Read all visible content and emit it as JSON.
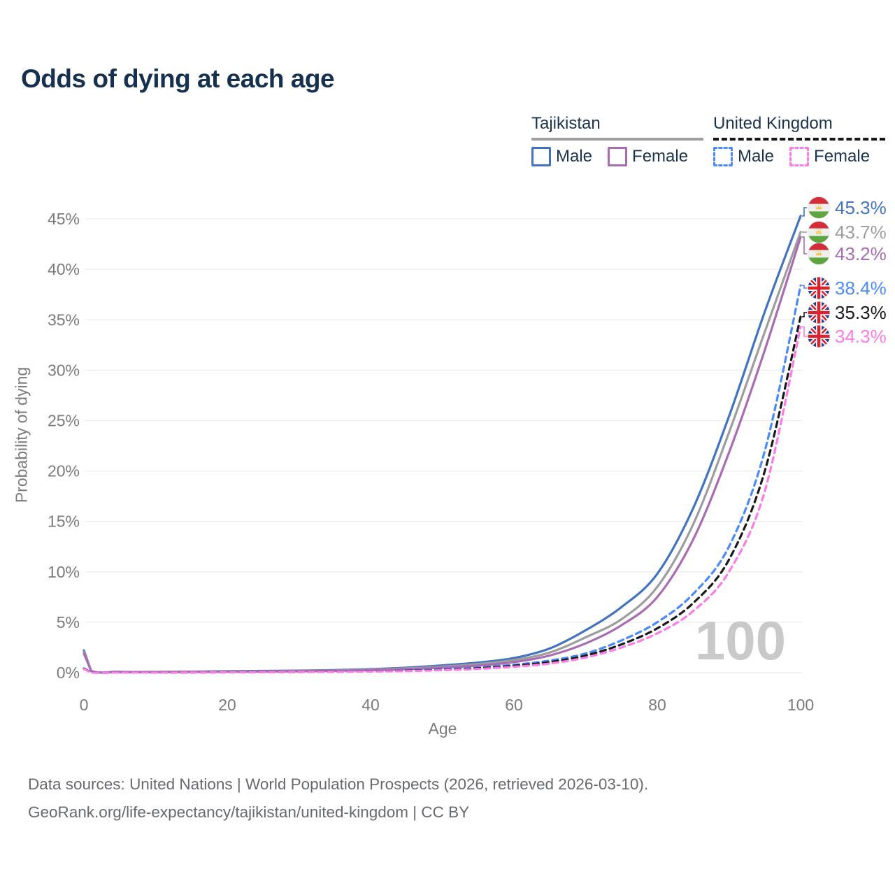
{
  "title": "Odds of dying at each age",
  "legend": {
    "tajikistan": {
      "title": "Tajikistan",
      "male": "Male",
      "female": "Female"
    },
    "united_kingdom": {
      "title": "United Kingdom",
      "male": "Male",
      "female": "Female"
    }
  },
  "colors": {
    "tj_male": "#4273bf",
    "tj_both": "#9d9d9d",
    "tj_female": "#a96cb3",
    "uk_male": "#4b8af8",
    "uk_both": "#1a1a1a",
    "uk_female": "#fb7be9"
  },
  "chart_data": {
    "type": "line",
    "title": "Odds of dying at each age",
    "xlabel": "Age",
    "ylabel": "Probability of dying",
    "x_ticks": [
      0,
      20,
      40,
      60,
      80,
      100
    ],
    "y_ticks": [
      0,
      5,
      10,
      15,
      20,
      25,
      30,
      35,
      40,
      45
    ],
    "y_tick_suffix": "%",
    "xlim": [
      0,
      100
    ],
    "ylim": [
      0,
      46
    ],
    "grid": "horizontal",
    "watermark": "100",
    "ages": [
      0,
      1,
      5,
      10,
      15,
      20,
      25,
      30,
      35,
      40,
      45,
      50,
      55,
      60,
      65,
      70,
      75,
      80,
      85,
      90,
      95,
      100
    ],
    "series": [
      {
        "name": "Tajikistan Male",
        "color_key": "tj_male",
        "dash": false,
        "flag": "tajikistan",
        "end_label": "45.3%",
        "values": [
          2.2,
          0.2,
          0.08,
          0.07,
          0.1,
          0.14,
          0.17,
          0.2,
          0.26,
          0.35,
          0.5,
          0.72,
          1.0,
          1.45,
          2.4,
          4.2,
          6.5,
          9.8,
          16.3,
          25.4,
          35.8,
          45.3
        ]
      },
      {
        "name": "Tajikistan (both sexes)",
        "color_key": "tj_both",
        "dash": false,
        "flag": "tajikistan",
        "end_label": "43.7%",
        "values": [
          2.05,
          0.18,
          0.07,
          0.06,
          0.09,
          0.12,
          0.14,
          0.17,
          0.22,
          0.3,
          0.42,
          0.6,
          0.85,
          1.25,
          2.0,
          3.5,
          5.3,
          8.5,
          14.7,
          23.8,
          33.8,
          43.7
        ]
      },
      {
        "name": "Tajikistan Female",
        "color_key": "tj_female",
        "dash": false,
        "flag": "tajikistan",
        "end_label": "43.2%",
        "values": [
          1.9,
          0.17,
          0.06,
          0.05,
          0.07,
          0.1,
          0.12,
          0.14,
          0.18,
          0.25,
          0.35,
          0.5,
          0.7,
          1.05,
          1.7,
          2.9,
          4.7,
          7.5,
          13.2,
          21.8,
          32.0,
          43.2
        ]
      },
      {
        "name": "United Kingdom Male",
        "color_key": "uk_male",
        "dash": true,
        "flag": "uk",
        "end_label": "38.4%",
        "values": [
          0.42,
          0.03,
          0.01,
          0.01,
          0.03,
          0.05,
          0.06,
          0.08,
          0.11,
          0.15,
          0.22,
          0.33,
          0.5,
          0.78,
          1.2,
          1.9,
          3.2,
          5.0,
          7.8,
          12.5,
          22.0,
          38.4
        ]
      },
      {
        "name": "United Kingdom (both sexes)",
        "color_key": "uk_both",
        "dash": true,
        "flag": "uk",
        "end_label": "35.3%",
        "values": [
          0.39,
          0.03,
          0.01,
          0.01,
          0.02,
          0.04,
          0.05,
          0.07,
          0.1,
          0.13,
          0.19,
          0.28,
          0.43,
          0.68,
          1.05,
          1.7,
          2.8,
          4.4,
          6.9,
          11.2,
          20.0,
          35.3
        ]
      },
      {
        "name": "United Kingdom Female",
        "color_key": "uk_female",
        "dash": true,
        "flag": "uk",
        "end_label": "34.3%",
        "values": [
          0.36,
          0.02,
          0.01,
          0.01,
          0.02,
          0.03,
          0.04,
          0.06,
          0.08,
          0.11,
          0.16,
          0.24,
          0.37,
          0.58,
          0.9,
          1.5,
          2.5,
          3.9,
          6.1,
          10.0,
          18.0,
          34.3
        ]
      }
    ]
  },
  "footer": {
    "line1": "Data sources: United Nations | World Population Prospects (2026, retrieved 2026-03-10).",
    "line2": "GeoRank.org/life-expectancy/tajikistan/united-kingdom | CC BY"
  }
}
